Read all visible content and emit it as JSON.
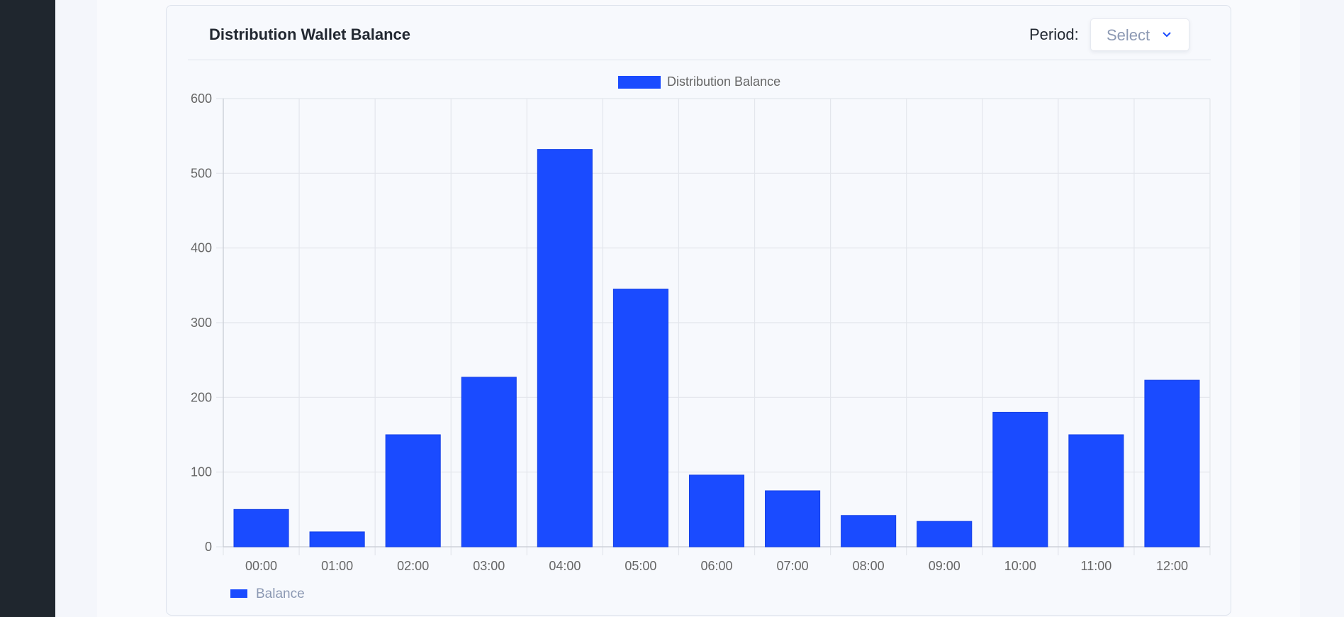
{
  "card": {
    "title": "Distribution Wallet Balance",
    "period_label": "Period:",
    "select_label": "Select",
    "bottom_legend": "Balance"
  },
  "colors": {
    "bar": "#1a4bff",
    "grid": "#e3e6ec",
    "text": "#666666"
  },
  "chart_data": {
    "type": "bar",
    "categories": [
      "00:00",
      "01:00",
      "02:00",
      "03:00",
      "04:00",
      "05:00",
      "06:00",
      "07:00",
      "08:00",
      "09:00",
      "10:00",
      "11:00",
      "12:00"
    ],
    "series": [
      {
        "name": "Distribution Balance",
        "values": [
          50,
          20,
          150,
          227,
          532,
          345,
          96,
          75,
          42,
          34,
          180,
          150,
          223
        ]
      }
    ],
    "ylim": [
      0,
      600
    ],
    "yticks": [
      0,
      100,
      200,
      300,
      400,
      500,
      600
    ],
    "grid": true,
    "legend": "top-center",
    "title": "",
    "xlabel": "",
    "ylabel": ""
  }
}
